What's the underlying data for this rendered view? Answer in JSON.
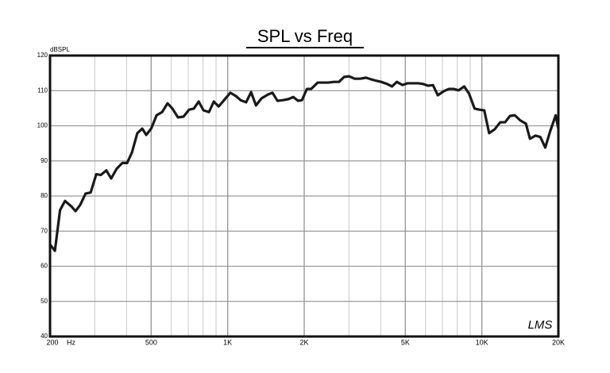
{
  "chart_data": {
    "type": "line",
    "title": "SPL vs Freq",
    "ylabel": "dBSPL",
    "xlabel": "Hz",
    "watermark": "LMS",
    "log_x": true,
    "grid": true,
    "xlim": [
      200,
      20000
    ],
    "ylim": [
      40,
      120
    ],
    "yticks": [
      40,
      50,
      60,
      70,
      80,
      90,
      100,
      110,
      120
    ],
    "xticks": [
      {
        "value": 200,
        "label": "200"
      },
      {
        "value": 500,
        "label": "500"
      },
      {
        "value": 1000,
        "label": "1K"
      },
      {
        "value": 2000,
        "label": "2K"
      },
      {
        "value": 5000,
        "label": "5K"
      },
      {
        "value": 10000,
        "label": "10K"
      },
      {
        "value": 20000,
        "label": "20K"
      }
    ],
    "x_minor_ticks": [
      300,
      400,
      600,
      700,
      800,
      900,
      3000,
      4000,
      6000,
      7000,
      8000,
      9000
    ],
    "x": [
      200,
      209,
      219,
      229,
      243,
      252,
      263,
      276,
      289,
      304,
      317,
      333,
      348,
      366,
      385,
      402,
      420,
      441,
      461,
      478,
      500,
      525,
      552,
      580,
      606,
      637,
      670,
      705,
      736,
      769,
      803,
      844,
      882,
      921,
      968,
      1024,
      1076,
      1124,
      1182,
      1236,
      1292,
      1358,
      1440,
      1500,
      1570,
      1650,
      1734,
      1812,
      1894,
      1960,
      2050,
      2130,
      2260,
      2370,
      2480,
      2620,
      2740,
      2870,
      3000,
      3160,
      3320,
      3500,
      3680,
      3850,
      4020,
      4240,
      4430,
      4630,
      4870,
      5090,
      5350,
      5630,
      5880,
      6140,
      6420,
      6710,
      7060,
      7420,
      7750,
      8100,
      8520,
      8900,
      9360,
      9780,
      10220,
      10680,
      11230,
      11810,
      12340,
      12900,
      13480,
      14180,
      14910,
      15460,
      16260,
      16990,
      17760,
      18560,
      19520,
      20000
    ],
    "series": [
      {
        "name": "SPL",
        "color": "#1a1a1a",
        "values": [
          66.2,
          64.4,
          76,
          78.6,
          77,
          75.7,
          77.5,
          80.7,
          81,
          86.2,
          86,
          87.3,
          85,
          87.8,
          89.4,
          89.4,
          92.4,
          97.9,
          99.2,
          97.4,
          99.2,
          103,
          103.9,
          106.4,
          104.9,
          102.4,
          102.6,
          104.6,
          104.9,
          106.9,
          104.4,
          103.9,
          106.9,
          105.5,
          107.3,
          109.4,
          108.5,
          107.3,
          106.7,
          109.6,
          105.8,
          107.8,
          108.9,
          109.4,
          107.1,
          107.3,
          107.6,
          108.2,
          107.1,
          107.3,
          110.5,
          110.5,
          112.3,
          112.3,
          112.3,
          112.5,
          112.5,
          113.9,
          114.1,
          113.4,
          113.4,
          113.7,
          113.2,
          112.8,
          112.5,
          111.9,
          111.2,
          112.5,
          111.6,
          112.1,
          112.1,
          112.1,
          111.9,
          111.4,
          111.6,
          108.7,
          109.8,
          110.5,
          110.5,
          110.1,
          111.2,
          109.2,
          104.9,
          104.6,
          104.4,
          97.9,
          99,
          101,
          101,
          102.8,
          103,
          101.5,
          100.6,
          96.3,
          97.2,
          96.8,
          93.8,
          98.4,
          103,
          99.2
        ]
      }
    ]
  }
}
